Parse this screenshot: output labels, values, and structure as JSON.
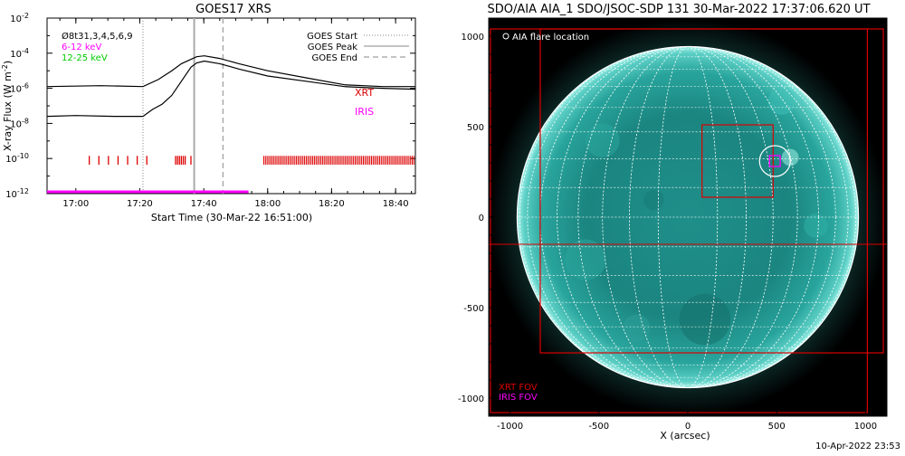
{
  "footer": {
    "date": "10-Apr-2022 23:53"
  },
  "chart_data": [
    {
      "type": "line",
      "title": "GOES17 XRS",
      "xlabel": "Start Time (30-Mar-22 16:51:00)",
      "ylabel": "X-ray Flux (W m",
      "ylabel_sup": "-2",
      "ylabel_end": ")",
      "ylim_log10": [
        -12,
        -2
      ],
      "xlim_minutes": [
        16.85,
        18.77
      ],
      "x_ticks": [
        {
          "label": "17:00",
          "t": 17.0
        },
        {
          "label": "17:20",
          "t": 17.333
        },
        {
          "label": "17:40",
          "t": 17.667
        },
        {
          "label": "18:00",
          "t": 18.0
        },
        {
          "label": "18:20",
          "t": 18.333
        },
        {
          "label": "18:40",
          "t": 18.667
        }
      ],
      "y_ticks": [
        {
          "base": "10",
          "exp": "-2",
          "v": -2
        },
        {
          "base": "10",
          "exp": "-4",
          "v": -4
        },
        {
          "base": "10",
          "exp": "-6",
          "v": -6
        },
        {
          "base": "10",
          "exp": "-8",
          "v": -8
        },
        {
          "base": "10",
          "exp": "-10",
          "v": -10
        },
        {
          "base": "10",
          "exp": "-12",
          "v": -12
        }
      ],
      "legend_left": [
        {
          "text": "Ø8t31,3,4,5,6,9",
          "color": "#000000"
        },
        {
          "text": "6-12 keV",
          "color": "#ff00ff"
        },
        {
          "text": "12-25 keV",
          "color": "#00cc00"
        }
      ],
      "legend_right": [
        {
          "text": "GOES Start",
          "style": "dotted"
        },
        {
          "text": "GOES Peak",
          "style": "solid"
        },
        {
          "text": "GOES End",
          "style": "dashed"
        }
      ],
      "event_lines": {
        "start": 17.35,
        "peak": 17.617,
        "end": 17.767
      },
      "series": [
        {
          "color": "#000000",
          "x": [
            16.85,
            17.13,
            17.35,
            17.43,
            17.5,
            17.55,
            17.6,
            17.63,
            17.67,
            17.75,
            17.85,
            18.0,
            18.2,
            18.4,
            18.6,
            18.77
          ],
          "y": [
            -5.9,
            -5.85,
            -5.9,
            -5.5,
            -5.0,
            -4.6,
            -4.35,
            -4.2,
            -4.15,
            -4.3,
            -4.6,
            -5.0,
            -5.4,
            -5.8,
            -5.9,
            -5.9
          ]
        },
        {
          "color": "#000000",
          "x": [
            16.85,
            17.0,
            17.2,
            17.35,
            17.4,
            17.45,
            17.5,
            17.55,
            17.6,
            17.63,
            17.67,
            17.75,
            17.85,
            18.0,
            18.2,
            18.4,
            18.6,
            18.77
          ],
          "y": [
            -7.6,
            -7.55,
            -7.6,
            -7.6,
            -7.2,
            -6.9,
            -6.4,
            -5.6,
            -4.8,
            -4.55,
            -4.45,
            -4.6,
            -4.9,
            -5.3,
            -5.6,
            -5.9,
            -6.0,
            -6.05
          ]
        }
      ],
      "xrt": {
        "label": "XRT",
        "color": "#dd0000",
        "ticks": [
          17.07,
          17.12,
          17.17,
          17.22,
          17.27,
          17.32,
          17.37,
          17.52,
          17.53,
          17.54,
          17.55,
          17.56,
          17.57,
          17.6
        ],
        "dense_range": [
          17.98,
          18.77
        ]
      },
      "iris": {
        "label": "IRIS",
        "color": "#ff00ff",
        "range": [
          16.85,
          17.9
        ]
      }
    },
    {
      "type": "heatmap",
      "title": "SDO/AIA AIA_1 SDO/JSOC-SDP 131 30-Mar-2022 17:37:06.620 UT",
      "xlabel": "X (arcsec)",
      "xlim": [
        -1120,
        1120
      ],
      "ylim": [
        -1100,
        1100
      ],
      "x_ticks": [
        -1000,
        -500,
        0,
        500,
        1000
      ],
      "y_ticks": [
        1000,
        500,
        0,
        -500,
        -1000
      ],
      "x_tick_labels": [
        "-1000",
        "-500",
        "0",
        "500",
        "1000"
      ],
      "y_tick_labels": [
        "1000",
        "500",
        "0",
        "-500",
        "-1000"
      ],
      "solar_radius": 960,
      "flare_location": {
        "x": 490,
        "y": 310
      },
      "flare_circle_label": "AIA flare location",
      "xrt_fov_label": "XRT FOV",
      "iris_fov_label": "IRIS FOV",
      "xrt_fov_color": "#dd0000",
      "iris_fov_color": "#ff00ff",
      "xrt_boxes": [
        {
          "x0": -1110,
          "x1": 1010,
          "y0": -1080,
          "y1": 1040
        },
        {
          "x0": -830,
          "x1": 1100,
          "y0": -750,
          "y1": 1040
        },
        {
          "x0": 80,
          "x1": 480,
          "y0": 110,
          "y1": 510
        }
      ],
      "xrt_crosshair": {
        "x": -830,
        "y": -150
      },
      "iris_box": {
        "x0": 460,
        "x1": 520,
        "y0": 280,
        "y1": 340
      }
    }
  ]
}
